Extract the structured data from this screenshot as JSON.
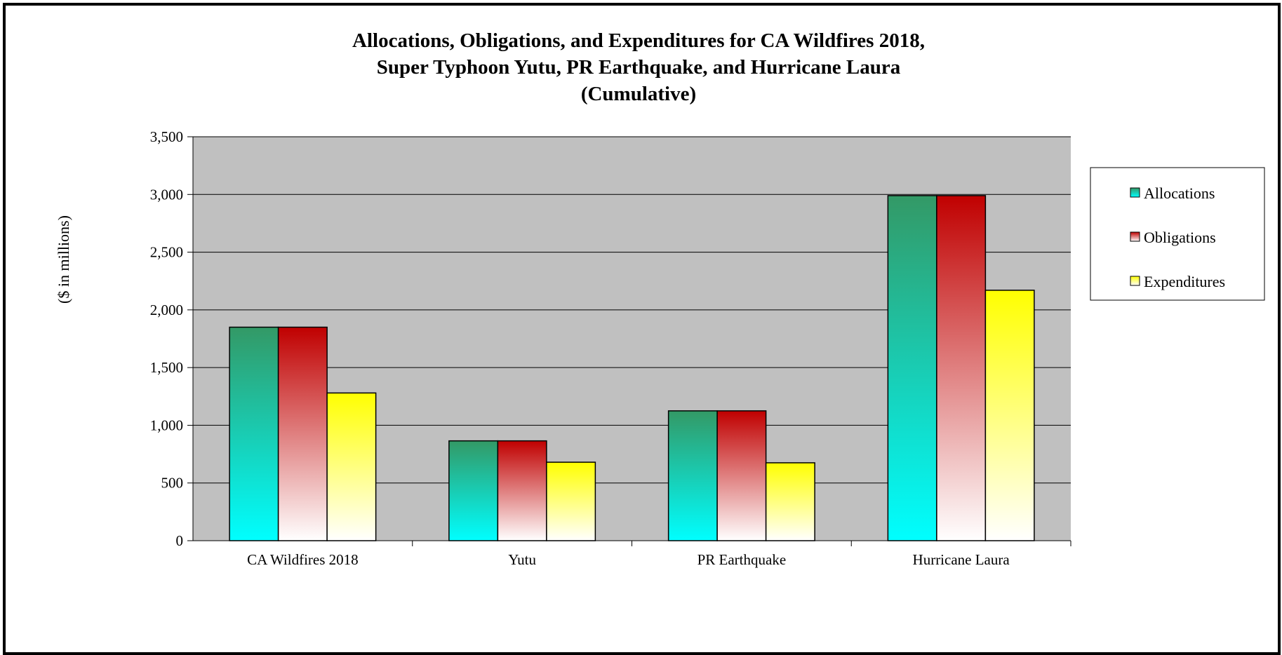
{
  "chart_data": {
    "type": "bar",
    "title": [
      "Allocations, Obligations, and Expenditures for CA Wildfires 2018,",
      "Super Typhoon Yutu, PR Earthquake, and Hurricane Laura",
      "(Cumulative)"
    ],
    "xlabel": "",
    "ylabel": "($ in millions)",
    "ylim": [
      0,
      3500
    ],
    "yticks": [
      0,
      500,
      1000,
      1500,
      2000,
      2500,
      3000,
      3500
    ],
    "ytick_labels": [
      "0",
      "500",
      "1,000",
      "1,500",
      "2,000",
      "2,500",
      "3,000",
      "3,500"
    ],
    "categories": [
      "CA Wildfires 2018",
      "Yutu",
      "PR Earthquake",
      "Hurricane Laura"
    ],
    "series": [
      {
        "name": "Allocations",
        "values": [
          1850,
          865,
          1125,
          2990
        ],
        "color_top": "#339966",
        "color_bottom": "#00ffff"
      },
      {
        "name": "Obligations",
        "values": [
          1850,
          865,
          1125,
          2990
        ],
        "color_top": "#c00000",
        "color_bottom": "#ffffff"
      },
      {
        "name": "Expenditures",
        "values": [
          1280,
          680,
          675,
          2170
        ],
        "color_top": "#ffff00",
        "color_bottom": "#ffffff"
      }
    ],
    "grid": true,
    "plot_background": "#c0c0c0",
    "legend_position": "right"
  }
}
